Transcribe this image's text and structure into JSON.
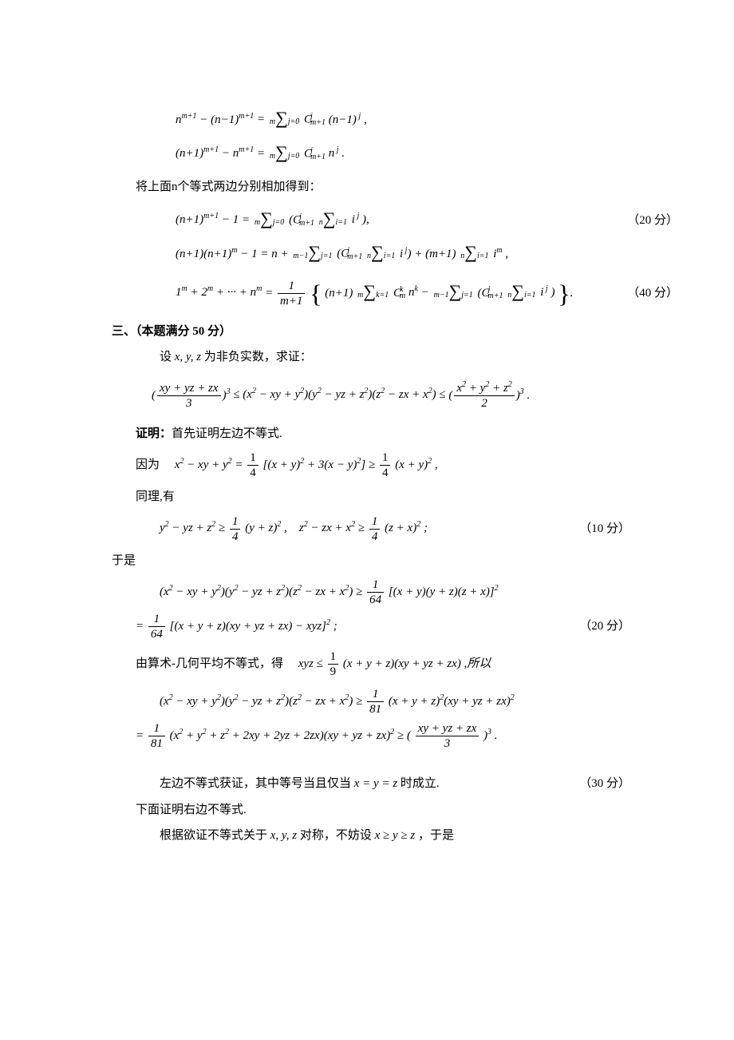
{
  "eq1": {
    "lhs": "n<sup>m+1</sup> − (n−1)<sup>m+1</sup>",
    "sum_top": "m",
    "sum_bot": "j=0",
    "term": "C",
    "term_sup": "j",
    "term_sub": "m+1",
    "tail": "(n−1)<sup> j</sup> ,"
  },
  "eq2": {
    "lhs": "(n+1)<sup>m+1</sup> − n<sup>m+1</sup>",
    "sum_top": "m",
    "sum_bot": "j=0",
    "term": "C",
    "term_sup": "j",
    "term_sub": "m+1",
    "tail": "n<sup> j</sup> ."
  },
  "para1": "将上面n个等式两边分别相加得到：",
  "eq3": {
    "lhs": "(n+1)<sup>m+1</sup> − 1",
    "sum1_top": "m",
    "sum1_bot": "j=0",
    "C_sup": "j",
    "C_sub": "m+1",
    "sum2_top": "n",
    "sum2_bot": "i=1",
    "tail": "i<sup> j</sup> ),",
    "score": "（20 分）"
  },
  "eq4": {
    "lhs": "(n+1)(n+1)<sup>m</sup> − 1 = n +",
    "sum1_top": "m−1",
    "sum1_bot": "j=1",
    "C_sup": "j",
    "C_sub": "m+1",
    "sum2_top": "n",
    "sum2_bot": "i=1",
    "mid": "i<sup> j</sup>) + (m+1)",
    "sum3_top": "n",
    "sum3_bot": "i=1",
    "tail": "i<sup>m</sup> ,"
  },
  "eq5": {
    "lhs": "1<sup>m</sup> + 2<sup>m</sup> + ··· + n<sup>m</sup>",
    "frac_num": "1",
    "frac_den": "m+1",
    "pre": "(n+1)",
    "sumA_top": "m",
    "sumA_bot": "k=1",
    "CA_sup": "k",
    "CA_sub": "m",
    "midA": "n<sup>k</sup> −",
    "sumB_top": "m−1",
    "sumB_bot": "j=1",
    "CB_sup": "j",
    "CB_sub": "m+1",
    "sumC_top": "n",
    "sumC_bot": "i=1",
    "tail": "i<sup> j</sup> )",
    "score": "（40 分）"
  },
  "section3_title": "三、（本题满分 50 分）",
  "para2": "设 x, y, z 为非负实数，求证：",
  "ineq_main": {
    "left_num": "xy + yz + zx",
    "left_den": "3",
    "mid": " ≤ (x<sup>2</sup> − xy + y<sup>2</sup>)(y<sup>2</sup> − yz + z<sup>2</sup>)(z<sup>2</sup> − zx + x<sup>2</sup>) ≤ ",
    "right_num": "x<sup>2</sup> + y<sup>2</sup> + z<sup>2</sup>",
    "right_den": "2"
  },
  "proof_label": "证明：",
  "proof_start": "首先证明左边不等式.",
  "line_because": "因为　",
  "eq6": "x<sup>2</sup> − xy + y<sup>2</sup> = ",
  "eq6_frac1": "1",
  "eq6_frac1d": "4",
  "eq6_mid": "[(x + y)<sup>2</sup> + 3(x − y)<sup>2</sup>] ≥ ",
  "eq6_frac2": "1",
  "eq6_frac2d": "4",
  "eq6_tail": "(x + y)<sup>2</sup> ,",
  "line_similarly": "同理,有",
  "eq7a": "y<sup>2</sup> − yz + z<sup>2</sup> ≥ ",
  "eq7_frac": "1",
  "eq7_fracd": "4",
  "eq7_mid": "(y + z)<sup>2</sup> ,　z<sup>2</sup> − zx + x<sup>2</sup> ≥ ",
  "eq7_tail": "(z + x)<sup>2</sup> ;",
  "eq7_score": "（10 分）",
  "line_so": "于是",
  "eq8_l1": "(x<sup>2</sup> − xy + y<sup>2</sup>)(y<sup>2</sup> − yz + z<sup>2</sup>)(z<sup>2</sup> − zx + x<sup>2</sup>) ≥ ",
  "eq8_frac1": "1",
  "eq8_frac1d": "64",
  "eq8_l1_tail": "[(x + y)(y + z)(z + x)]<sup>2</sup>",
  "eq8_l2_pre": "= ",
  "eq8_frac2": "1",
  "eq8_frac2d": "64",
  "eq8_l2_tail": "[(x + y + z)(xy + yz + zx) − xyz]<sup>2</sup> ;",
  "eq8_score": "（20 分）",
  "line_amgm": "由算术-几何平均不等式，得　",
  "amgm_eq": "xyz ≤ ",
  "amgm_frac": "1",
  "amgm_fracd": "9",
  "amgm_tail": "(x + y + z)(xy + yz + zx) ,所以",
  "eq9_l1": "(x<sup>2</sup> − xy + y<sup>2</sup>)(y<sup>2</sup> − yz + z<sup>2</sup>)(z<sup>2</sup> − zx + x<sup>2</sup>) ≥ ",
  "eq9_frac1": "1",
  "eq9_frac1d": "81",
  "eq9_l1_tail": "(x + y + z)<sup>2</sup>(xy + yz + zx)<sup>2</sup>",
  "eq9_l2_pre": "= ",
  "eq9_frac2": "1",
  "eq9_frac2d": "81",
  "eq9_l2_mid": "(x<sup>2</sup> + y<sup>2</sup> + z<sup>2</sup> + 2xy + 2yz + 2zx)(xy + yz + zx)<sup>2</sup> ≥ (",
  "eq9_frac3n": "xy + yz + zx",
  "eq9_frac3d": "3",
  "eq9_l2_tail": ")<sup>3</sup> .",
  "para_left_done_a": "左边不等式获证，其中等号当且仅当 ",
  "para_left_done_b": "x = y = z",
  "para_left_done_c": " 时成立.",
  "score30": "（30 分）",
  "para_right": "下面证明右边不等式.",
  "para_sym_a": "根据欲证不等式关于 ",
  "para_sym_b": "x, y, z",
  "para_sym_c": " 对称，不妨设 ",
  "para_sym_d": "x ≥ y ≥ z",
  "para_sym_e": " ，于是"
}
